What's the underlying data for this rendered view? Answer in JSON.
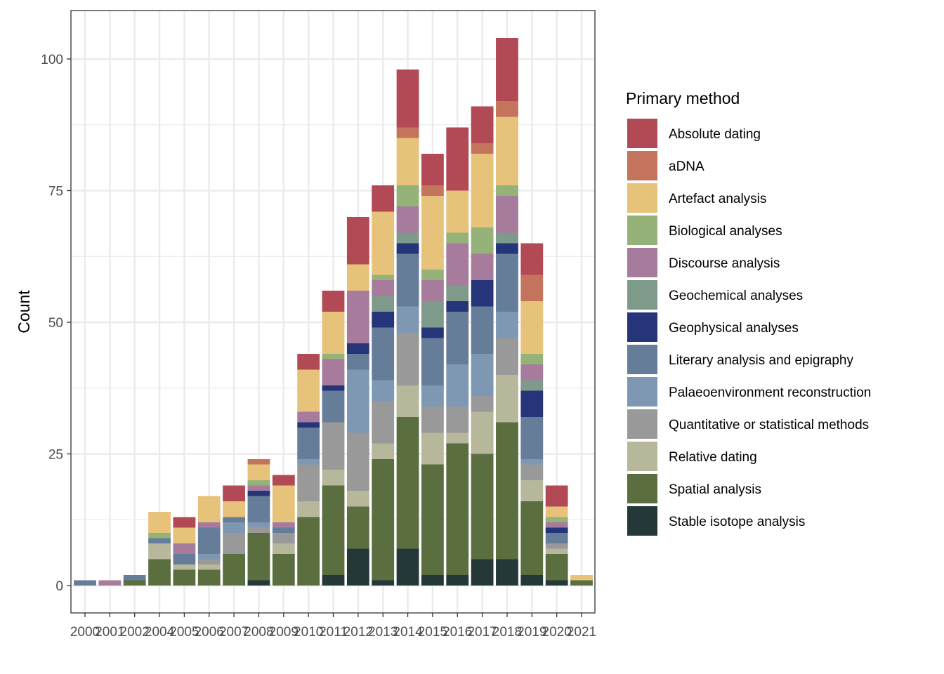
{
  "chart_data": {
    "type": "bar",
    "stacked": true,
    "title": "",
    "xlabel": "",
    "ylabel": "Count",
    "ylim": [
      -5.2,
      109.2
    ],
    "yticks": [
      0,
      25,
      50,
      75,
      100
    ],
    "grid": true,
    "legend_position": "right",
    "legend_title": "Primary method",
    "categories": [
      "2000",
      "2001",
      "2002",
      "2004",
      "2005",
      "2006",
      "2007",
      "2008",
      "2009",
      "2010",
      "2011",
      "2012",
      "2013",
      "2014",
      "2015",
      "2016",
      "2017",
      "2018",
      "2019",
      "2020",
      "2021"
    ],
    "series": [
      {
        "name": "Absolute dating",
        "color": "#b24a55",
        "values": [
          0,
          0,
          0,
          0,
          2,
          0,
          3,
          0,
          2,
          3,
          4,
          9,
          5,
          11,
          6,
          12,
          7,
          12,
          6,
          4,
          0
        ]
      },
      {
        "name": "aDNA",
        "color": "#c4745d",
        "values": [
          0,
          0,
          0,
          0,
          0,
          0,
          0,
          1,
          0,
          0,
          0,
          0,
          0,
          2,
          2,
          0,
          2,
          3,
          5,
          0,
          0
        ]
      },
      {
        "name": "Artefact analysis",
        "color": "#e6c27a",
        "values": [
          0,
          0,
          0,
          4,
          3,
          5,
          3,
          3,
          7,
          8,
          8,
          5,
          12,
          9,
          14,
          8,
          14,
          13,
          10,
          2,
          1
        ]
      },
      {
        "name": "Biological analyses",
        "color": "#95b279",
        "values": [
          0,
          0,
          0,
          1,
          0,
          0,
          0,
          1,
          0,
          0,
          1,
          0,
          1,
          4,
          2,
          2,
          5,
          2,
          2,
          1,
          0
        ]
      },
      {
        "name": "Discourse analysis",
        "color": "#a67b9b",
        "values": [
          0,
          1,
          0,
          0,
          2,
          1,
          0,
          1,
          1,
          2,
          5,
          10,
          3,
          5,
          4,
          8,
          5,
          7,
          3,
          1,
          0
        ]
      },
      {
        "name": "Geochemical analyses",
        "color": "#7d9a8b",
        "values": [
          0,
          0,
          0,
          0,
          0,
          0,
          0,
          0,
          0,
          0,
          0,
          0,
          3,
          2,
          5,
          3,
          0,
          2,
          2,
          0,
          0
        ]
      },
      {
        "name": "Geophysical analyses",
        "color": "#26357a",
        "values": [
          0,
          0,
          0,
          0,
          0,
          0,
          0,
          1,
          0,
          1,
          1,
          2,
          3,
          2,
          2,
          2,
          5,
          2,
          5,
          1,
          0
        ]
      },
      {
        "name": "Literary analysis and epigraphy",
        "color": "#667d99",
        "values": [
          1,
          0,
          1,
          1,
          2,
          5,
          1,
          5,
          1,
          6,
          6,
          3,
          10,
          10,
          9,
          10,
          9,
          11,
          8,
          2,
          0
        ]
      },
      {
        "name": "Palaeoenvironment reconstruction",
        "color": "#7e98b3",
        "values": [
          0,
          0,
          0,
          0,
          0,
          1,
          2,
          1,
          0,
          1,
          0,
          12,
          4,
          5,
          4,
          8,
          8,
          5,
          1,
          0,
          0
        ]
      },
      {
        "name": "Quantitative or statistical methods",
        "color": "#999999",
        "values": [
          0,
          0,
          0,
          0,
          0,
          1,
          4,
          1,
          2,
          7,
          9,
          11,
          8,
          10,
          5,
          5,
          3,
          7,
          3,
          1,
          0
        ]
      },
      {
        "name": "Relative dating",
        "color": "#b6b79b",
        "values": [
          0,
          0,
          0,
          3,
          1,
          1,
          0,
          0,
          2,
          3,
          3,
          3,
          3,
          6,
          6,
          2,
          8,
          9,
          4,
          1,
          0
        ]
      },
      {
        "name": "Spatial analysis",
        "color": "#5b6e3f",
        "values": [
          0,
          0,
          1,
          5,
          3,
          3,
          6,
          9,
          6,
          13,
          17,
          8,
          23,
          25,
          21,
          25,
          20,
          26,
          14,
          5,
          1
        ]
      },
      {
        "name": "Stable isotope analysis",
        "color": "#253838",
        "values": [
          0,
          0,
          0,
          0,
          0,
          0,
          0,
          1,
          0,
          0,
          2,
          7,
          1,
          7,
          2,
          2,
          5,
          5,
          2,
          1,
          0
        ]
      }
    ],
    "stack_order_bottom_to_top": [
      "Stable isotope analysis",
      "Spatial analysis",
      "Relative dating",
      "Quantitative or statistical methods",
      "Palaeoenvironment reconstruction",
      "Literary analysis and epigraphy",
      "Geophysical analyses",
      "Geochemical analyses",
      "Discourse analysis",
      "Biological analyses",
      "Artefact analysis",
      "aDNA",
      "Absolute dating"
    ],
    "totals": [
      1,
      1,
      2,
      14,
      13,
      17,
      19,
      24,
      21,
      44,
      56,
      70,
      76,
      98,
      82,
      87,
      91,
      104,
      65,
      19,
      2
    ]
  }
}
